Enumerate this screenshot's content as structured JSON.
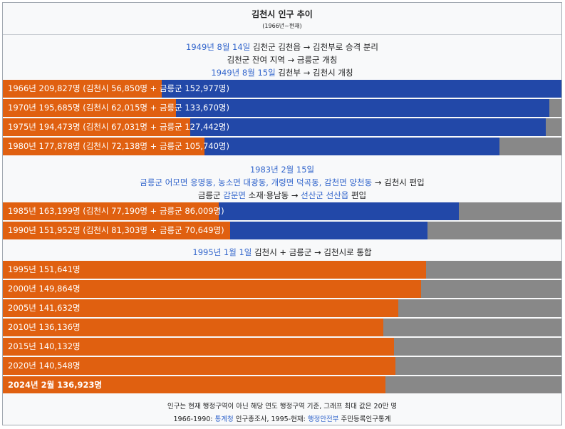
{
  "header": {
    "title": "김천시 인구 추이",
    "subtitle": "(1966년~현재)"
  },
  "notes": {
    "n1": {
      "l1": {
        "date": "1949년 8월 14일",
        "a": "김천군",
        "b": " 김천읍 → ",
        "c": "김천부",
        "d": "로 승격 분리"
      },
      "l2": {
        "text": "김천군 잔여 지역 → 금릉군 개칭"
      },
      "l3": {
        "date": "1949년 8월 15일",
        "a": " 김천부 → 김천시",
        "b": " 개칭"
      }
    },
    "n2": {
      "l1": {
        "date": "1983년 2월 15일"
      },
      "l2": {
        "places": "금릉군 어모면 응명동, 농소면 대광동, 개령면 덕곡동, 감천면 양천동",
        "arrow": " → ",
        "city": "김천시",
        "tail": " 편입"
      },
      "l3": {
        "a": "금릉군 ",
        "b": "감문면",
        "c": " 소재·용남동 → ",
        "d": "선산군 선산읍",
        "e": " 편입"
      }
    },
    "n3": {
      "l1": {
        "date": "1995년 1월 1일",
        "a": " 김천시 + 금릉군 → 김천시",
        "b": "로 통합"
      }
    }
  },
  "chart_data": {
    "type": "bar",
    "orientation": "horizontal",
    "stacked": true,
    "xlim": [
      0,
      200000
    ],
    "colors": {
      "gimcheon_si": "#e06010",
      "geumneung_gun": "#2248a8",
      "background": "#888888"
    },
    "rows": [
      {
        "year": "1966",
        "label": "1966년 209,827명 (김천시 56,850명 + 금릉군 152,977명)",
        "total": 209827,
        "gimcheon": 56850,
        "geumneung": 152977
      },
      {
        "year": "1970",
        "label": "1970년 195,685명 (김천시 62,015명 + 금릉군 133,670명)",
        "total": 195685,
        "gimcheon": 62015,
        "geumneung": 133670
      },
      {
        "year": "1975",
        "label": "1975년 194,473명 (김천시 67,031명 + 금릉군 127,442명)",
        "total": 194473,
        "gimcheon": 67031,
        "geumneung": 127442
      },
      {
        "year": "1980",
        "label": "1980년 177,878명 (김천시 72,138명 + 금릉군 105,740명)",
        "total": 177878,
        "gimcheon": 72138,
        "geumneung": 105740
      },
      {
        "year": "1985",
        "label": "1985년 163,199명 (김천시 77,190명 + 금릉군 86,009명)",
        "total": 163199,
        "gimcheon": 77190,
        "geumneung": 86009
      },
      {
        "year": "1990",
        "label": "1990년 151,952명 (김천시 81,303명 + 금릉군 70,649명)",
        "total": 151952,
        "gimcheon": 81303,
        "geumneung": 70649
      },
      {
        "year": "1995",
        "label": "1995년 151,641명",
        "total": 151641
      },
      {
        "year": "2000",
        "label": "2000년 149,864명",
        "total": 149864
      },
      {
        "year": "2005",
        "label": "2005년 141,632명",
        "total": 141632
      },
      {
        "year": "2010",
        "label": "2010년 136,136명",
        "total": 136136
      },
      {
        "year": "2015",
        "label": "2015년 140,132명",
        "total": 140132
      },
      {
        "year": "2020",
        "label": "2020년 140,548명",
        "total": 140548
      },
      {
        "year": "2024년 2월",
        "label": "2024년 2월 136,923명",
        "total": 136923,
        "bold": true
      }
    ]
  },
  "footer": {
    "line1": "인구는 현재 행정구역이 아닌 해당 연도 행정구역 기준, 그래프 최대 값은 20만 명",
    "l2": {
      "a": "1966-1990: ",
      "b": "통계청",
      "c": " 인구총조사, 1995-현재: ",
      "d": "행정안전부",
      "e": " 주민등록인구통계"
    }
  }
}
